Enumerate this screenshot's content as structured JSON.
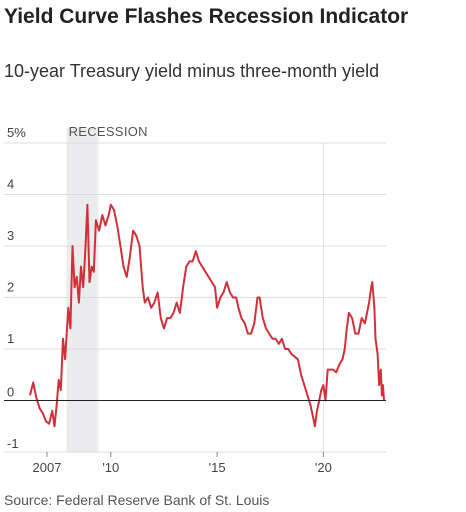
{
  "title": "Yield Curve Flashes Recession Indicator",
  "subtitle": "10-year Treasury yield minus three-month yield",
  "source": "Source: Federal Reserve Bank of St. Louis",
  "colors": {
    "line": "#d1303a",
    "recession": "#ececee",
    "grid": "#dddddd",
    "zero_line": "#222222",
    "marker_2020": "#e4e4e4"
  },
  "chart_data": {
    "type": "line",
    "title": "Yield Curve Flashes Recession Indicator",
    "subtitle": "10-year Treasury yield minus three-month yield",
    "ylim": [
      -1,
      5
    ],
    "xlim": [
      2006.2,
      2022.85
    ],
    "y_ticks": [
      {
        "value": 5,
        "label": "5%"
      },
      {
        "value": 4,
        "label": "4"
      },
      {
        "value": 3,
        "label": "3"
      },
      {
        "value": 2,
        "label": "2"
      },
      {
        "value": 1,
        "label": "1"
      },
      {
        "value": 0,
        "label": "0"
      },
      {
        "value": -1,
        "label": "-1"
      }
    ],
    "x_ticks": [
      {
        "value": 2007,
        "label": "2007"
      },
      {
        "value": 2010,
        "label": "'10"
      },
      {
        "value": 2015,
        "label": "'15"
      },
      {
        "value": 2020,
        "label": "'20"
      }
    ],
    "recession": {
      "label": "RECESSION",
      "start": 2007.92,
      "end": 2009.42
    },
    "grid": true,
    "series": [
      {
        "values": [
          [
            2006.2,
            0.1
          ],
          [
            2006.35,
            0.35
          ],
          [
            2006.5,
            0.05
          ],
          [
            2006.65,
            -0.15
          ],
          [
            2006.8,
            -0.25
          ],
          [
            2006.95,
            -0.4
          ],
          [
            2007.1,
            -0.45
          ],
          [
            2007.25,
            -0.2
          ],
          [
            2007.35,
            -0.5
          ],
          [
            2007.45,
            -0.1
          ],
          [
            2007.55,
            0.4
          ],
          [
            2007.65,
            0.2
          ],
          [
            2007.75,
            1.2
          ],
          [
            2007.85,
            0.8
          ],
          [
            2008.0,
            1.8
          ],
          [
            2008.1,
            1.4
          ],
          [
            2008.2,
            3.0
          ],
          [
            2008.3,
            2.2
          ],
          [
            2008.4,
            2.4
          ],
          [
            2008.5,
            1.9
          ],
          [
            2008.6,
            2.6
          ],
          [
            2008.7,
            2.2
          ],
          [
            2008.8,
            2.9
          ],
          [
            2008.9,
            3.8
          ],
          [
            2009.0,
            2.3
          ],
          [
            2009.1,
            2.6
          ],
          [
            2009.2,
            2.5
          ],
          [
            2009.3,
            3.5
          ],
          [
            2009.45,
            3.3
          ],
          [
            2009.6,
            3.6
          ],
          [
            2009.75,
            3.4
          ],
          [
            2009.9,
            3.6
          ],
          [
            2010.0,
            3.8
          ],
          [
            2010.15,
            3.7
          ],
          [
            2010.3,
            3.4
          ],
          [
            2010.45,
            3.0
          ],
          [
            2010.6,
            2.6
          ],
          [
            2010.75,
            2.4
          ],
          [
            2010.9,
            2.8
          ],
          [
            2011.05,
            3.3
          ],
          [
            2011.2,
            3.2
          ],
          [
            2011.35,
            3.0
          ],
          [
            2011.5,
            2.2
          ],
          [
            2011.6,
            1.9
          ],
          [
            2011.75,
            2.0
          ],
          [
            2011.9,
            1.8
          ],
          [
            2012.05,
            1.9
          ],
          [
            2012.2,
            2.1
          ],
          [
            2012.35,
            1.6
          ],
          [
            2012.5,
            1.4
          ],
          [
            2012.65,
            1.6
          ],
          [
            2012.8,
            1.6
          ],
          [
            2012.95,
            1.7
          ],
          [
            2013.1,
            1.9
          ],
          [
            2013.25,
            1.7
          ],
          [
            2013.4,
            2.2
          ],
          [
            2013.55,
            2.6
          ],
          [
            2013.7,
            2.7
          ],
          [
            2013.85,
            2.7
          ],
          [
            2014.0,
            2.9
          ],
          [
            2014.15,
            2.7
          ],
          [
            2014.3,
            2.6
          ],
          [
            2014.45,
            2.5
          ],
          [
            2014.6,
            2.4
          ],
          [
            2014.75,
            2.3
          ],
          [
            2014.9,
            2.2
          ],
          [
            2015.0,
            1.8
          ],
          [
            2015.15,
            2.0
          ],
          [
            2015.3,
            2.1
          ],
          [
            2015.45,
            2.3
          ],
          [
            2015.6,
            2.1
          ],
          [
            2015.75,
            2.0
          ],
          [
            2015.9,
            2.0
          ],
          [
            2016.0,
            1.8
          ],
          [
            2016.15,
            1.6
          ],
          [
            2016.3,
            1.5
          ],
          [
            2016.45,
            1.3
          ],
          [
            2016.6,
            1.3
          ],
          [
            2016.75,
            1.5
          ],
          [
            2016.9,
            2.0
          ],
          [
            2017.0,
            2.0
          ],
          [
            2017.15,
            1.6
          ],
          [
            2017.3,
            1.4
          ],
          [
            2017.45,
            1.3
          ],
          [
            2017.6,
            1.2
          ],
          [
            2017.75,
            1.2
          ],
          [
            2017.9,
            1.1
          ],
          [
            2018.05,
            1.2
          ],
          [
            2018.2,
            1.0
          ],
          [
            2018.35,
            1.0
          ],
          [
            2018.5,
            0.9
          ],
          [
            2018.65,
            0.85
          ],
          [
            2018.8,
            0.8
          ],
          [
            2018.95,
            0.5
          ],
          [
            2019.1,
            0.3
          ],
          [
            2019.25,
            0.1
          ],
          [
            2019.4,
            -0.1
          ],
          [
            2019.5,
            -0.3
          ],
          [
            2019.6,
            -0.5
          ],
          [
            2019.7,
            -0.2
          ],
          [
            2019.8,
            0.0
          ],
          [
            2019.9,
            0.2
          ],
          [
            2020.0,
            0.3
          ],
          [
            2020.1,
            0.0
          ],
          [
            2020.2,
            0.6
          ],
          [
            2020.3,
            0.6
          ],
          [
            2020.45,
            0.6
          ],
          [
            2020.6,
            0.55
          ],
          [
            2020.75,
            0.7
          ],
          [
            2020.9,
            0.8
          ],
          [
            2021.0,
            1.0
          ],
          [
            2021.1,
            1.4
          ],
          [
            2021.2,
            1.7
          ],
          [
            2021.35,
            1.6
          ],
          [
            2021.5,
            1.3
          ],
          [
            2021.65,
            1.3
          ],
          [
            2021.8,
            1.6
          ],
          [
            2021.95,
            1.5
          ],
          [
            2022.05,
            1.7
          ],
          [
            2022.15,
            1.9
          ],
          [
            2022.25,
            2.2
          ],
          [
            2022.3,
            2.3
          ],
          [
            2022.4,
            1.8
          ],
          [
            2022.45,
            1.2
          ],
          [
            2022.55,
            0.9
          ],
          [
            2022.62,
            0.3
          ],
          [
            2022.7,
            0.6
          ],
          [
            2022.75,
            0.1
          ],
          [
            2022.8,
            0.3
          ],
          [
            2022.85,
            0.0
          ]
        ]
      }
    ]
  }
}
